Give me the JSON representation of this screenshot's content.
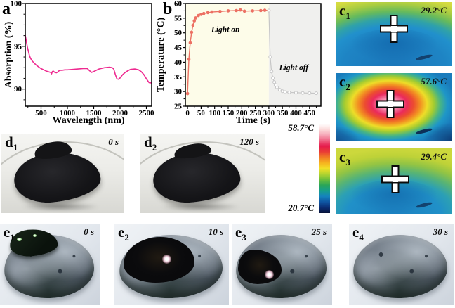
{
  "figure": {
    "panels": {
      "a": {
        "label": "a"
      },
      "b": {
        "label": "b"
      },
      "c1": {
        "label": "c",
        "sub": "1",
        "temp": "29.2°C"
      },
      "c2": {
        "label": "c",
        "sub": "2",
        "temp": "57.6°C"
      },
      "c3": {
        "label": "c",
        "sub": "3",
        "temp": "29.4°C"
      },
      "d1": {
        "label": "d",
        "sub": "1",
        "time": "0 s"
      },
      "d2": {
        "label": "d",
        "sub": "2",
        "time": "120 s"
      },
      "e1": {
        "label": "e",
        "sub": "1",
        "time": "0 s"
      },
      "e2": {
        "label": "e",
        "sub": "2",
        "time": "10 s"
      },
      "e3": {
        "label": "e",
        "sub": "3",
        "time": "25 s"
      },
      "e4": {
        "label": "e",
        "sub": "4",
        "time": "30 s"
      }
    },
    "colorbar": {
      "max_label": "58.7°C",
      "min_label": "20.7°C",
      "colors": [
        "#ffffff",
        "#fcdcdc",
        "#f6a8b8",
        "#ef6484",
        "#e51a4c",
        "#e93a36",
        "#f07c25",
        "#f6b21f",
        "#f2e027",
        "#b4d42f",
        "#6cbe3b",
        "#2aa558",
        "#169e8c",
        "#1583bd",
        "#0f55a2",
        "#0b2d74",
        "#071238"
      ]
    }
  },
  "chart_data": [
    {
      "id": "absorption",
      "type": "line",
      "title": "",
      "xlabel": "Wavelength (nm)",
      "ylabel": "Absorption (%)",
      "xlim": [
        200,
        2600
      ],
      "ylim": [
        88,
        100
      ],
      "xticks": [
        500,
        1000,
        1500,
        2000,
        2500
      ],
      "yticks": [
        90,
        95,
        100
      ],
      "xminor": {
        "start": 250,
        "step": 250
      },
      "yminor": {
        "start": 88.75,
        "step": 1.25
      },
      "grid": false,
      "series": [
        {
          "name": "absorption",
          "color": "#ee2a90",
          "marker": "none",
          "width": 1.6,
          "points": [
            [
              200,
              96.3
            ],
            [
              220,
              95.6
            ],
            [
              240,
              94.9
            ],
            [
              260,
              94.4
            ],
            [
              280,
              93.9
            ],
            [
              300,
              93.6
            ],
            [
              330,
              93.3
            ],
            [
              360,
              93.1
            ],
            [
              400,
              92.85
            ],
            [
              450,
              92.6
            ],
            [
              500,
              92.4
            ],
            [
              550,
              92.25
            ],
            [
              600,
              92.1
            ],
            [
              650,
              92.0
            ],
            [
              680,
              91.95
            ],
            [
              700,
              91.8
            ],
            [
              715,
              92.05
            ],
            [
              730,
              92.1
            ],
            [
              760,
              91.95
            ],
            [
              790,
              91.9
            ],
            [
              820,
              92.0
            ],
            [
              850,
              92.2
            ],
            [
              900,
              92.2
            ],
            [
              950,
              92.25
            ],
            [
              1000,
              92.25
            ],
            [
              1100,
              92.3
            ],
            [
              1200,
              92.35
            ],
            [
              1300,
              92.4
            ],
            [
              1380,
              92.4
            ],
            [
              1420,
              92.15
            ],
            [
              1460,
              91.95
            ],
            [
              1500,
              92.05
            ],
            [
              1550,
              92.2
            ],
            [
              1600,
              92.35
            ],
            [
              1700,
              92.5
            ],
            [
              1800,
              92.55
            ],
            [
              1850,
              92.5
            ],
            [
              1880,
              92.35
            ],
            [
              1910,
              91.7
            ],
            [
              1940,
              91.2
            ],
            [
              1970,
              91.15
            ],
            [
              2000,
              91.3
            ],
            [
              2050,
              91.7
            ],
            [
              2100,
              91.95
            ],
            [
              2150,
              92.15
            ],
            [
              2200,
              92.3
            ],
            [
              2280,
              92.35
            ],
            [
              2350,
              92.25
            ],
            [
              2400,
              92.05
            ],
            [
              2450,
              91.7
            ],
            [
              2500,
              91.2
            ],
            [
              2550,
              90.75
            ],
            [
              2600,
              90.7
            ]
          ]
        }
      ]
    },
    {
      "id": "temperature",
      "type": "line",
      "title": "",
      "xlabel": "Time (s)",
      "ylabel": "Temperature (°C)",
      "xlim": [
        -8,
        492
      ],
      "ylim": [
        25,
        60
      ],
      "xticks": [
        0,
        50,
        100,
        150,
        200,
        250,
        300,
        350,
        400,
        450
      ],
      "yticks": [
        25,
        30,
        35,
        40,
        45,
        50,
        55,
        60
      ],
      "xminor": {
        "start": 25,
        "step": 25
      },
      "yminor": {
        "start": 27.5,
        "step": 2.5
      },
      "grid": false,
      "regions": [
        {
          "label": "Light on",
          "from": -8,
          "to": 300,
          "color": "#fdfce9",
          "label_at": [
            140,
            50.3
          ]
        },
        {
          "label": "Light off",
          "from": 300,
          "to": 492,
          "color": "#f0f0ee",
          "label_at": [
            392,
            37.3
          ]
        }
      ],
      "series": [
        {
          "name": "Light on",
          "color": "#ec7063",
          "marker": "filled",
          "width": 1.4,
          "points": [
            [
              0,
              29.3
            ],
            [
              5,
              41.0
            ],
            [
              10,
              46.6
            ],
            [
              15,
              50.2
            ],
            [
              20,
              52.6
            ],
            [
              25,
              54.1
            ],
            [
              30,
              55.1
            ],
            [
              40,
              55.9
            ],
            [
              50,
              56.3
            ],
            [
              60,
              56.6
            ],
            [
              75,
              56.9
            ],
            [
              90,
              57.1
            ],
            [
              120,
              57.3
            ],
            [
              150,
              57.5
            ],
            [
              180,
              57.6
            ],
            [
              195,
              57.8
            ],
            [
              210,
              57.4
            ],
            [
              240,
              57.5
            ],
            [
              270,
              57.6
            ],
            [
              285,
              57.7
            ],
            [
              300,
              57.6
            ]
          ]
        },
        {
          "name": "Light off",
          "color": "#c6c6c6",
          "marker": "open",
          "width": 1.2,
          "points": [
            [
              300,
              57.6
            ],
            [
              305,
              41.8
            ],
            [
              310,
              36.8
            ],
            [
              315,
              34.6
            ],
            [
              320,
              33.2
            ],
            [
              325,
              32.2
            ],
            [
              330,
              31.4
            ],
            [
              340,
              30.6
            ],
            [
              350,
              30.1
            ],
            [
              360,
              29.8
            ],
            [
              375,
              29.7
            ],
            [
              400,
              29.6
            ],
            [
              425,
              29.5
            ],
            [
              450,
              29.45
            ],
            [
              475,
              29.4
            ]
          ]
        }
      ]
    }
  ]
}
